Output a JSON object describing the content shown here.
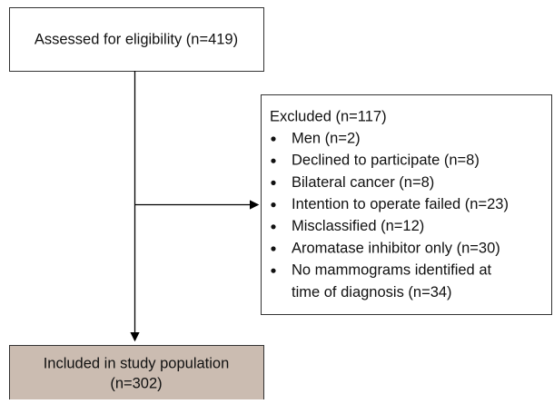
{
  "assessed": {
    "label": "Assessed for eligibility (n=419)"
  },
  "excluded": {
    "title": "Excluded (n=117)",
    "items": [
      {
        "lines": [
          "Men (n=2)"
        ]
      },
      {
        "lines": [
          "Declined to participate (n=8)"
        ]
      },
      {
        "lines": [
          "Bilateral cancer  (n=8)"
        ]
      },
      {
        "lines": [
          "Intention to operate failed (n=23)"
        ]
      },
      {
        "lines": [
          "Misclassified (n=12)"
        ]
      },
      {
        "lines": [
          "Aromatase inhibitor only  (n=30)"
        ]
      },
      {
        "lines": [
          "No mammograms identified at",
          "time of diagnosis (n=34)"
        ]
      }
    ]
  },
  "included": {
    "lines": [
      "Included in study population",
      "(n=302)"
    ]
  }
}
